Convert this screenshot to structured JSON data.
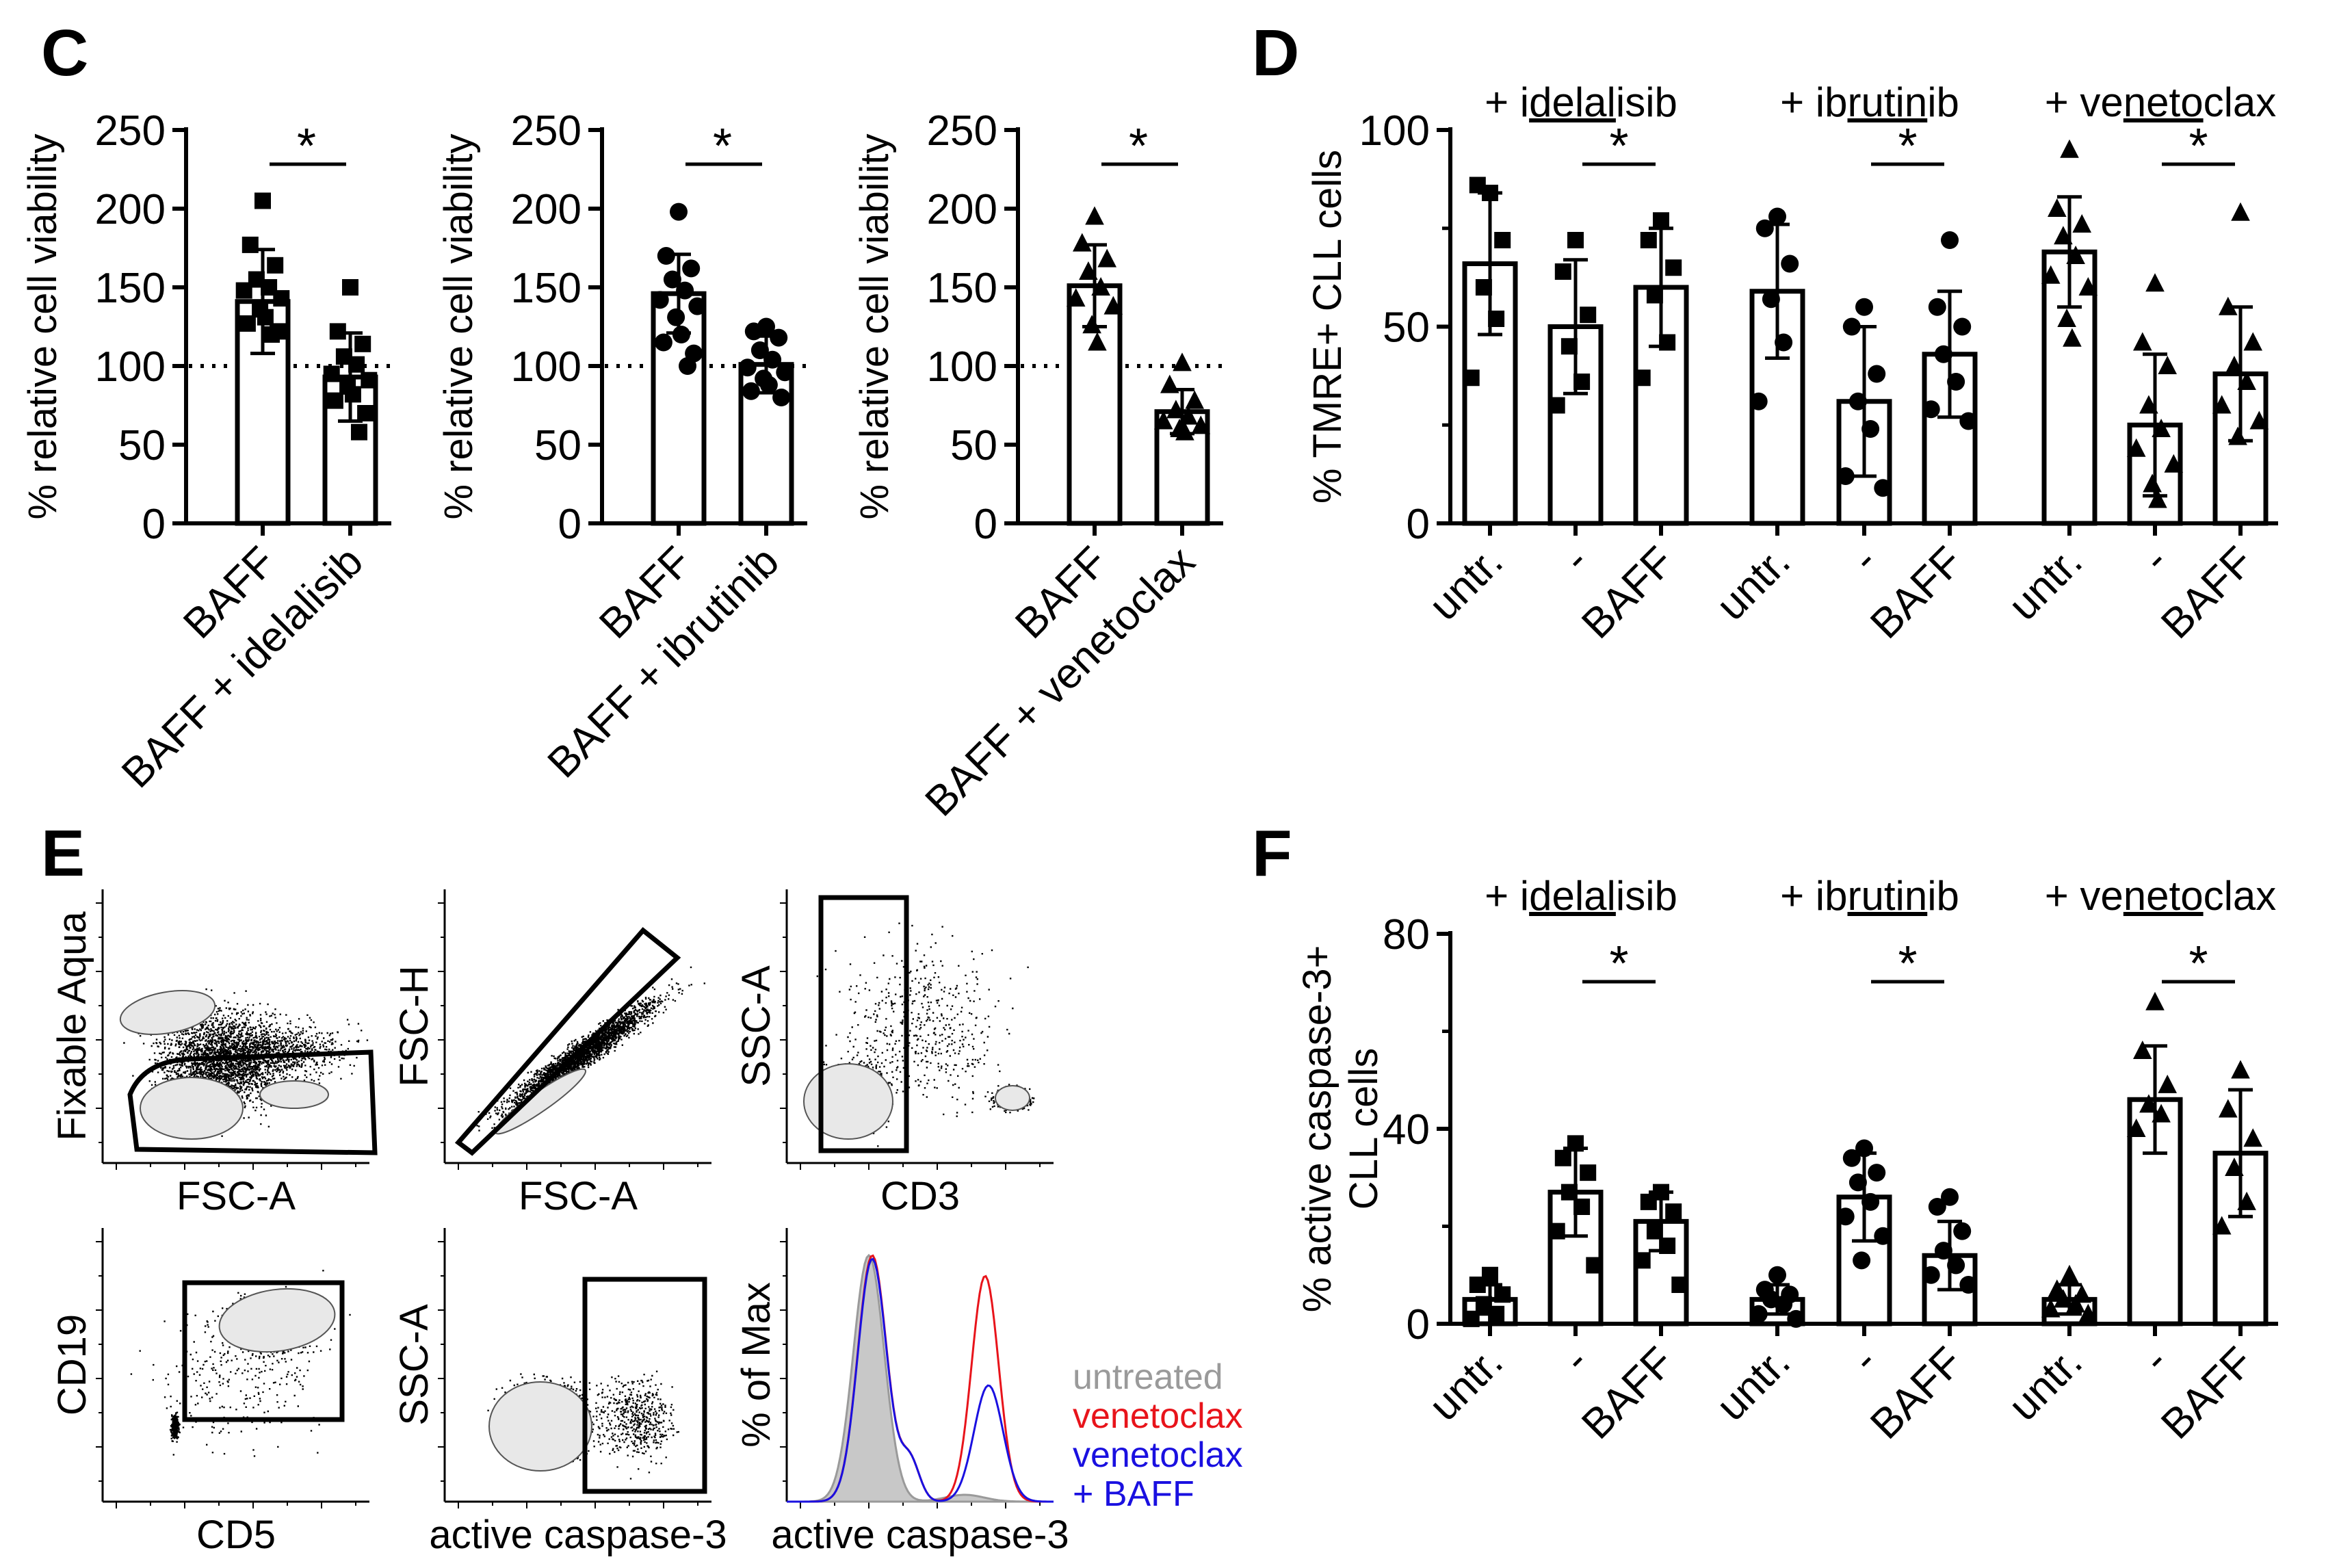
{
  "panels": {
    "C": "C",
    "D": "D",
    "E": "E",
    "F": "F"
  },
  "colors": {
    "untreated": "#9a9a9a",
    "venetoclax": "#e8141b",
    "venetoclax_baff": "#1a10e0",
    "axis": "#000000"
  },
  "chart_data": [
    {
      "id": "C1",
      "type": "bar",
      "marker": "square",
      "ylabel": "% relative cell viability",
      "yticks": [
        0,
        50,
        100,
        150,
        200,
        250
      ],
      "ylim": [
        0,
        250
      ],
      "reference_line": 100,
      "categories": [
        "BAFF",
        "BAFF + idelalisib"
      ],
      "values": [
        141,
        93
      ],
      "errors": [
        33,
        28
      ],
      "points": [
        [
          205,
          177,
          164,
          155,
          150,
          148,
          143,
          136,
          131,
          127,
          122,
          120
        ],
        [
          150,
          122,
          114,
          106,
          101,
          95,
          91,
          87,
          82,
          78,
          70,
          58
        ]
      ],
      "significance": "*"
    },
    {
      "id": "C2",
      "type": "bar",
      "marker": "circle",
      "ylabel": "% relative cell viability",
      "yticks": [
        0,
        50,
        100,
        150,
        200,
        250
      ],
      "ylim": [
        0,
        250
      ],
      "reference_line": 100,
      "categories": [
        "BAFF",
        "BAFF + ibrutinib"
      ],
      "values": [
        146,
        101
      ],
      "errors": [
        25,
        18
      ],
      "points": [
        [
          198,
          170,
          162,
          155,
          148,
          142,
          138,
          131,
          120,
          115,
          108,
          100
        ],
        [
          125,
          122,
          118,
          110,
          104,
          99,
          96,
          92,
          88,
          84,
          80
        ]
      ],
      "significance": "*"
    },
    {
      "id": "C3",
      "type": "bar",
      "marker": "triangle",
      "ylabel": "% relative cell viability",
      "yticks": [
        0,
        50,
        100,
        150,
        200,
        250
      ],
      "ylim": [
        0,
        250
      ],
      "reference_line": 100,
      "categories": [
        "BAFF",
        "BAFF + venetoclax"
      ],
      "values": [
        151,
        71
      ],
      "errors": [
        26,
        14
      ],
      "points": [
        [
          195,
          178,
          168,
          160,
          150,
          143,
          138,
          126,
          115
        ],
        [
          102,
          88,
          78,
          72,
          68,
          65,
          62,
          60,
          58
        ]
      ],
      "significance": "*"
    },
    {
      "id": "D",
      "type": "bar",
      "ylabel": "% TMRE+ CLL cells",
      "yticks": [
        0,
        50,
        100
      ],
      "ylim": [
        0,
        100
      ],
      "categories": [
        "untr.",
        "-",
        "BAFF",
        "untr.",
        "-",
        "BAFF",
        "untr.",
        "-",
        "BAFF"
      ],
      "groups": [
        {
          "label": "+ idelalisib",
          "underline": "delal",
          "marker": "square",
          "significance": "*",
          "values": [
            66,
            50,
            60
          ],
          "errors": [
            18,
            17,
            15
          ],
          "points": [
            [
              84,
              86,
              72,
              60,
              52,
              37
            ],
            [
              72,
              64,
              53,
              45,
              36,
              30
            ],
            [
              77,
              72,
              65,
              58,
              46,
              37
            ]
          ]
        },
        {
          "label": "+ ibrutinib",
          "underline": "rutin",
          "marker": "circle",
          "significance": "*",
          "values": [
            59,
            31,
            43
          ],
          "errors": [
            17,
            19,
            16
          ],
          "points": [
            [
              78,
              75,
              66,
              57,
              46,
              31
            ],
            [
              55,
              50,
              38,
              31,
              24,
              12,
              9
            ],
            [
              72,
              55,
              50,
              43,
              36,
              29,
              26
            ]
          ]
        },
        {
          "label": "+ venetoclax",
          "underline": "neto",
          "marker": "triangle",
          "significance": "*",
          "values": [
            69,
            25,
            38
          ],
          "errors": [
            14,
            18,
            17
          ],
          "points": [
            [
              95,
              80,
              76,
              73,
              68,
              63,
              60,
              52,
              47
            ],
            [
              61,
              46,
              40,
              30,
              24,
              19,
              15,
              10,
              6
            ],
            [
              79,
              55,
              46,
              40,
              36,
              30,
              26,
              22
            ]
          ]
        }
      ]
    },
    {
      "id": "F",
      "type": "bar",
      "ylabel": "% active caspase-3+ CLL cells",
      "yticks": [
        0,
        40,
        80
      ],
      "ylim": [
        0,
        80
      ],
      "categories": [
        "untr.",
        "-",
        "BAFF",
        "untr.",
        "-",
        "BAFF",
        "untr.",
        "-",
        "BAFF"
      ],
      "groups": [
        {
          "label": "+ idelalisib",
          "underline": "delal",
          "marker": "square",
          "significance": "*",
          "values": [
            5,
            27,
            21
          ],
          "errors": [
            3,
            9,
            6
          ],
          "points": [
            [
              10,
              8,
              6,
              4,
              2,
              1
            ],
            [
              37,
              34,
              31,
              27,
              24,
              19,
              12
            ],
            [
              27,
              25,
              23,
              19,
              16,
              13,
              8
            ]
          ]
        },
        {
          "label": "+ ibrutinib",
          "underline": "rutin",
          "marker": "circle",
          "significance": "*",
          "values": [
            5,
            26,
            14
          ],
          "errors": [
            3,
            9,
            7
          ],
          "points": [
            [
              10,
              7,
              6,
              5,
              4,
              2,
              1
            ],
            [
              36,
              34,
              31,
              29,
              25,
              22,
              18,
              13
            ],
            [
              26,
              24,
              19,
              15,
              12,
              10,
              8
            ]
          ]
        },
        {
          "label": "+ venetoclax",
          "underline": "neto",
          "marker": "triangle",
          "significance": "*",
          "values": [
            5,
            46,
            35
          ],
          "errors": [
            3,
            11,
            13
          ],
          "points": [
            [
              10,
              7,
              6,
              5,
              4,
              3,
              2
            ],
            [
              66,
              56,
              49,
              45,
              43,
              40
            ],
            [
              52,
              44,
              38,
              32,
              25,
              20
            ]
          ]
        }
      ]
    }
  ],
  "flow": {
    "plots": [
      {
        "id": "aqua",
        "ylabel": "Fixable Aqua",
        "xlabel": "FSC-A"
      },
      {
        "id": "singlets",
        "ylabel": "FSC-H",
        "xlabel": "FSC-A"
      },
      {
        "id": "cd3",
        "ylabel": "SSC-A",
        "xlabel": "CD3"
      },
      {
        "id": "cd19",
        "ylabel": "CD19",
        "xlabel": "CD5"
      },
      {
        "id": "casp",
        "ylabel": "SSC-A",
        "xlabel": "active caspase-3"
      },
      {
        "id": "hist",
        "ylabel": "% of Max",
        "xlabel": "active caspase-3"
      }
    ],
    "legend": [
      "untreated",
      "venetoclax",
      "venetoclax",
      "+ BAFF"
    ]
  }
}
